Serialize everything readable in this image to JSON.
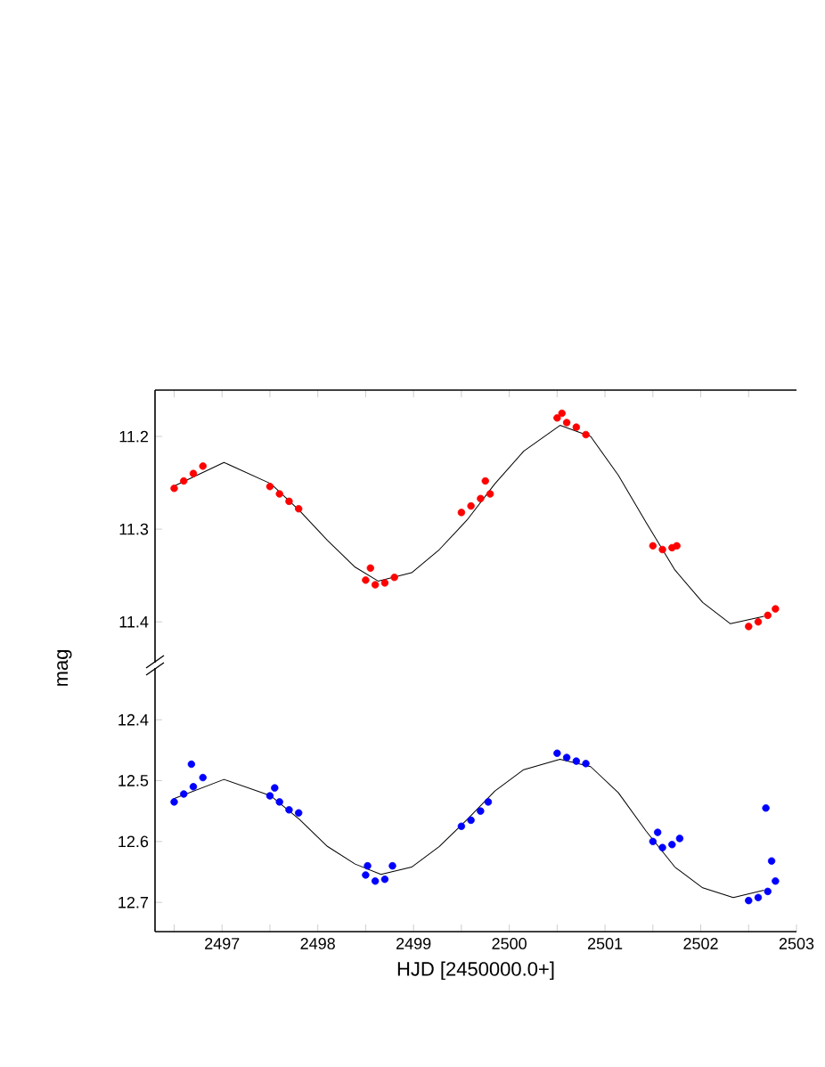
{
  "chart_data": [
    {
      "type": "scatter",
      "marker": "circle",
      "xlim": [
        2496.3,
        2503.0
      ],
      "ylim": [
        11.444,
        11.15
      ],
      "tick_labels": "y",
      "xticks": [
        {
          "value": 2496.5,
          "label": null
        },
        {
          "value": 2497,
          "label": null
        },
        {
          "value": 2497.5,
          "label": null
        },
        {
          "value": 2498,
          "label": null
        },
        {
          "value": 2498.5,
          "label": null
        },
        {
          "value": 2499,
          "label": null
        },
        {
          "value": 2499.5,
          "label": null
        },
        {
          "value": 2500,
          "label": null
        },
        {
          "value": 2500.5,
          "label": null
        },
        {
          "value": 2501,
          "label": null
        },
        {
          "value": 2501.5,
          "label": null
        },
        {
          "value": 2502,
          "label": null
        },
        {
          "value": 2502.5,
          "label": null
        }
      ],
      "yticks": [
        11.2,
        11.3,
        11.4
      ],
      "series": [
        {
          "color": "#ff0000",
          "x": [
            2496.5,
            2496.6,
            2496.7,
            2496.8,
            2497.5,
            2497.6,
            2497.7,
            2497.8,
            2498.5,
            2498.6,
            2498.7,
            2498.8,
            2498.55,
            2499.5,
            2499.6,
            2499.7,
            2499.8,
            2499.75,
            2500.5,
            2500.6,
            2500.7,
            2500.8,
            2500.55,
            2501.5,
            2501.6,
            2501.7,
            2501.75,
            2502.5,
            2502.6,
            2502.7,
            2502.78
          ],
          "values": [
            11.256,
            11.248,
            11.24,
            11.232,
            11.254,
            11.262,
            11.27,
            11.278,
            11.355,
            11.36,
            11.358,
            11.352,
            11.342,
            11.282,
            11.275,
            11.267,
            11.262,
            11.248,
            11.18,
            11.185,
            11.19,
            11.198,
            11.175,
            11.318,
            11.322,
            11.32,
            11.318,
            11.405,
            11.4,
            11.393,
            11.386
          ]
        },
        {
          "type": "line",
          "marker": "none",
          "color": "#000000",
          "x": [
            2496.49,
            2497.02,
            2497.51,
            2497.81,
            2498.1,
            2498.39,
            2498.63,
            2498.98,
            2499.27,
            2499.56,
            2499.85,
            2500.15,
            2500.53,
            2500.85,
            2501.14,
            2501.43,
            2501.73,
            2502.02,
            2502.31,
            2502.66
          ],
          "values": [
            11.254,
            11.228,
            11.251,
            11.28,
            11.312,
            11.341,
            11.356,
            11.347,
            11.322,
            11.29,
            11.251,
            11.216,
            11.188,
            11.2,
            11.242,
            11.293,
            11.344,
            11.379,
            11.402,
            11.394
          ]
        }
      ]
    },
    {
      "type": "scatter",
      "marker": "circle",
      "xlabel": "HJD [2450000.0+]",
      "ylabel": "mag",
      "xlim": [
        2496.3,
        2503.0
      ],
      "ylim": [
        12.748,
        12.315
      ],
      "xticks": [
        {
          "value": 2496.5,
          "label": null
        },
        2497,
        {
          "value": 2497.5,
          "label": null
        },
        2498,
        {
          "value": 2498.5,
          "label": null
        },
        2499,
        {
          "value": 2499.5,
          "label": null
        },
        2500,
        {
          "value": 2500.5,
          "label": null
        },
        2501,
        {
          "value": 2501.5,
          "label": null
        },
        2502,
        {
          "value": 2502.5,
          "label": null
        },
        2503
      ],
      "yticks": [
        12.4,
        12.5,
        12.6,
        12.7
      ],
      "series": [
        {
          "color": "#0000ff",
          "x": [
            2496.5,
            2496.6,
            2496.7,
            2496.8,
            2496.68,
            2497.5,
            2497.6,
            2497.7,
            2497.8,
            2497.55,
            2498.5,
            2498.6,
            2498.7,
            2498.78,
            2498.52,
            2499.5,
            2499.6,
            2499.7,
            2499.78,
            2500.5,
            2500.6,
            2500.7,
            2500.8,
            2501.5,
            2501.6,
            2501.7,
            2501.78,
            2501.55,
            2502.5,
            2502.6,
            2502.7,
            2502.78,
            2502.68,
            2502.74
          ],
          "values": [
            12.535,
            12.522,
            12.51,
            12.495,
            12.473,
            12.525,
            12.535,
            12.548,
            12.553,
            12.512,
            12.655,
            12.665,
            12.662,
            12.64,
            12.64,
            12.575,
            12.565,
            12.55,
            12.535,
            12.455,
            12.462,
            12.468,
            12.472,
            12.6,
            12.61,
            12.605,
            12.595,
            12.585,
            12.697,
            12.692,
            12.682,
            12.665,
            12.545,
            12.632
          ]
        },
        {
          "type": "line",
          "marker": "none",
          "color": "#000000",
          "x": [
            2496.49,
            2497.02,
            2497.51,
            2497.81,
            2498.1,
            2498.39,
            2498.66,
            2498.98,
            2499.27,
            2499.56,
            2499.85,
            2500.15,
            2500.53,
            2500.85,
            2501.14,
            2501.43,
            2501.73,
            2502.02,
            2502.34,
            2502.66
          ],
          "values": [
            12.53,
            12.498,
            12.525,
            12.564,
            12.608,
            12.637,
            12.654,
            12.642,
            12.608,
            12.564,
            12.517,
            12.482,
            12.465,
            12.477,
            12.52,
            12.583,
            12.642,
            12.676,
            12.692,
            12.68
          ]
        }
      ]
    }
  ]
}
